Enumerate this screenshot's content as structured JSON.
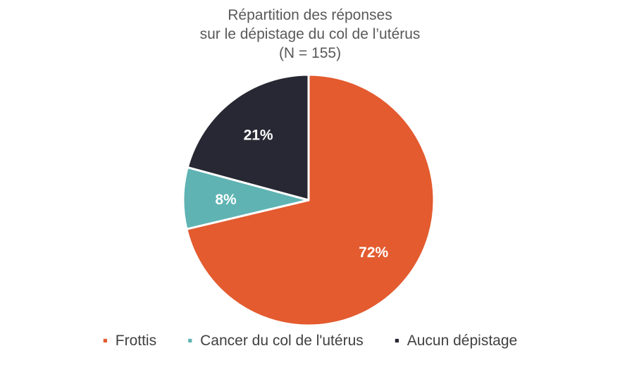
{
  "chart_data": {
    "type": "pie",
    "title": [
      "Répartition des réponses",
      "sur le dépistage du col de l’utérus",
      "(N = 155)"
    ],
    "slices": [
      {
        "name": "Frottis",
        "value": 72,
        "label": "72%",
        "color": "#E35B2F"
      },
      {
        "name": "Cancer du col de l'utérus",
        "value": 8,
        "label": "8%",
        "color": "#5FB3B3"
      },
      {
        "name": "Aucun dépistage",
        "value": 21,
        "label": "21%",
        "color": "#272833"
      }
    ],
    "start_angle_deg": 0,
    "direction": "clockwise",
    "legend_position": "bottom",
    "legend_marker": "▪"
  }
}
